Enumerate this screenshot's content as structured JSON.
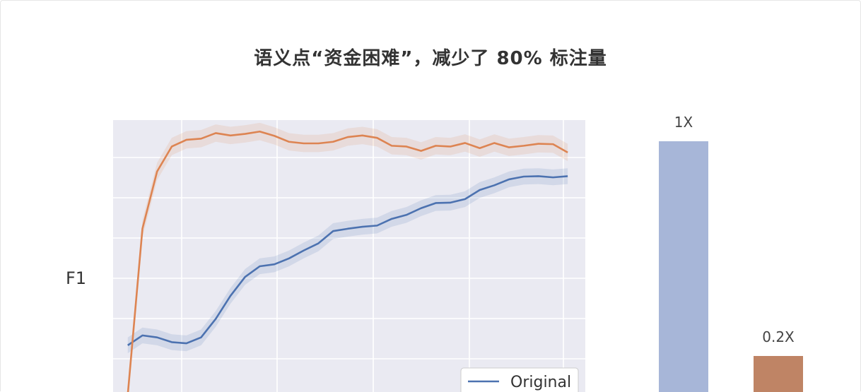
{
  "title": "语义点“资金困难”，减少了 80% 标注量",
  "chart_data": [
    {
      "type": "line",
      "ylabel": "F1",
      "grid": true,
      "legend": {
        "placement": "bottom-right"
      },
      "x": [
        0,
        1,
        2,
        3,
        4,
        5,
        6,
        7,
        8,
        9,
        10,
        11,
        12,
        13,
        14,
        15,
        16,
        17,
        18,
        19,
        20,
        21,
        22,
        23,
        24,
        25,
        26,
        27,
        28,
        29,
        30
      ],
      "series": [
        {
          "name": "Original",
          "color": "#4c72b0",
          "values": [
            0.305,
            0.33,
            0.325,
            0.313,
            0.31,
            0.325,
            0.372,
            0.43,
            0.478,
            0.505,
            0.51,
            0.525,
            0.545,
            0.563,
            0.594,
            0.6,
            0.605,
            0.608,
            0.625,
            0.635,
            0.652,
            0.665,
            0.666,
            0.675,
            0.698,
            0.71,
            0.725,
            0.732,
            0.733,
            0.73,
            0.733
          ],
          "band": 0.02
        },
        {
          "name": "",
          "color": "#dd8452",
          "values": [
            0.18,
            0.6,
            0.745,
            0.808,
            0.825,
            0.828,
            0.842,
            0.836,
            0.84,
            0.846,
            0.835,
            0.82,
            0.816,
            0.816,
            0.82,
            0.832,
            0.836,
            0.83,
            0.81,
            0.808,
            0.797,
            0.81,
            0.808,
            0.817,
            0.804,
            0.817,
            0.806,
            0.81,
            0.815,
            0.814,
            0.793
          ],
          "band": 0.022
        }
      ],
      "xlim": [
        -1,
        31.2
      ],
      "ylim": [
        0.16,
        0.875
      ]
    },
    {
      "type": "bar",
      "categories": [
        "",
        ""
      ],
      "values": [
        1.0,
        0.2
      ],
      "data_labels": [
        "1X",
        "0.2X"
      ],
      "colors": [
        "#a7b6d8",
        "#bf8465"
      ],
      "ylim": [
        0,
        1.1
      ]
    }
  ]
}
